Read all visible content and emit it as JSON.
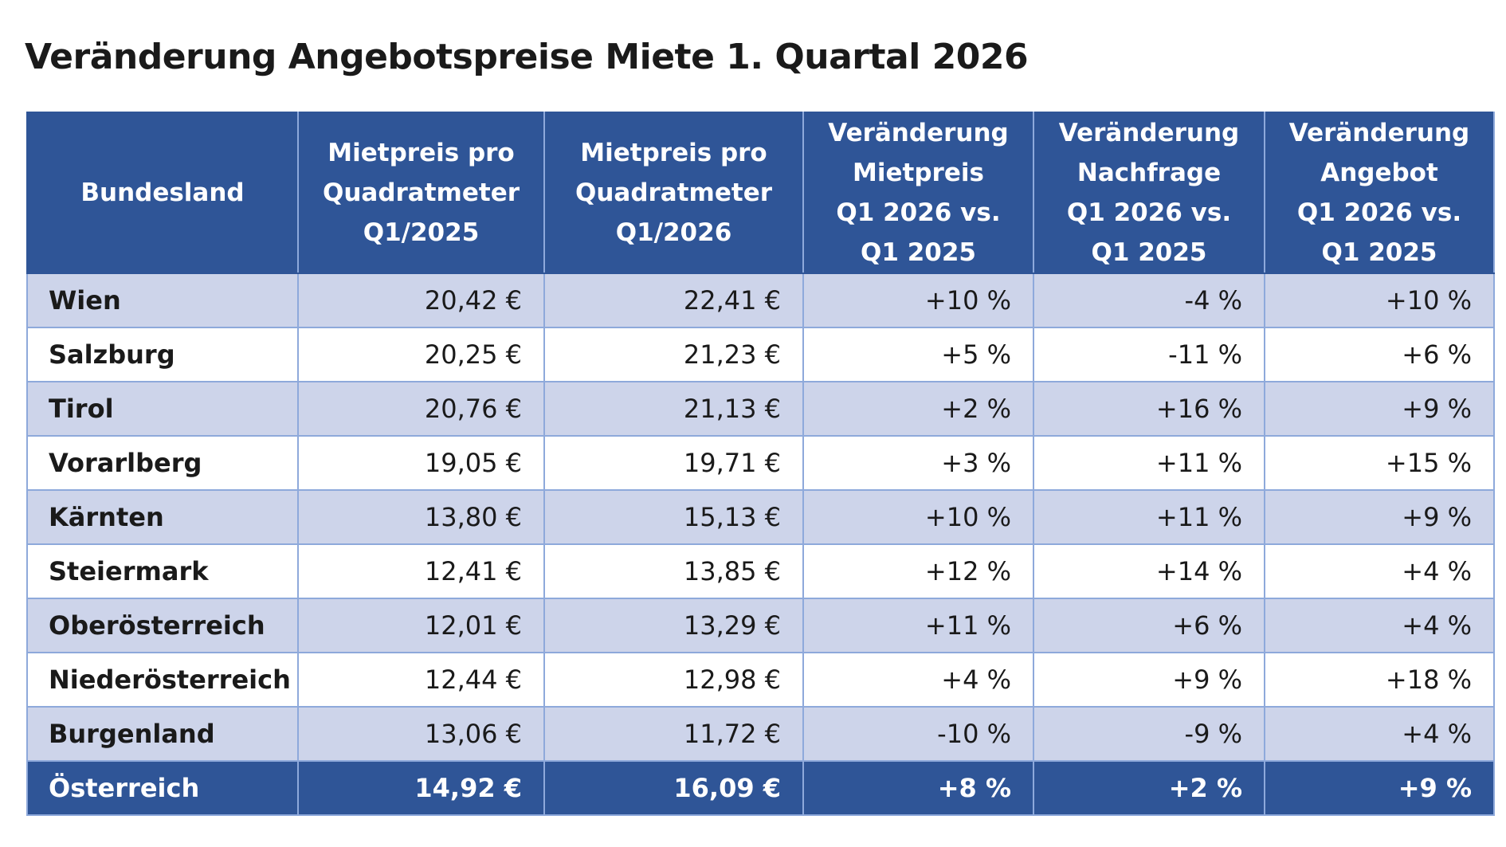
{
  "title": "Veränderung Angebotspreise Miete 1. Quartal 2026",
  "table": {
    "header": [
      "Bundesland",
      "Mietpreis pro\nQuadratmeter\nQ1/2025",
      "Mietpreis pro\nQuadratmeter\nQ1/2026",
      "Veränderung\nMietpreis\nQ1 2026 vs.\nQ1 2025",
      "Veränderung\nNachfrage\nQ1 2026 vs.\nQ1 2025",
      "Veränderung\nAngebot\nQ1 2026 vs.\nQ1 2025"
    ],
    "rows": [
      [
        "Wien",
        "20,42 €",
        "22,41 €",
        "+10 %",
        "-4 %",
        "+10 %"
      ],
      [
        "Salzburg",
        "20,25 €",
        "21,23 €",
        "+5 %",
        "-11 %",
        "+6 %"
      ],
      [
        "Tirol",
        "20,76 €",
        "21,13 €",
        "+2 %",
        "+16 %",
        "+9 %"
      ],
      [
        "Vorarlberg",
        "19,05 €",
        "19,71 €",
        "+3 %",
        "+11 %",
        "+15 %"
      ],
      [
        "Kärnten",
        "13,80 €",
        "15,13 €",
        "+10 %",
        "+11 %",
        "+9 %"
      ],
      [
        "Steiermark",
        "12,41 €",
        "13,85 €",
        "+12 %",
        "+14 %",
        "+4 %"
      ],
      [
        "Oberösterreich",
        "12,01 €",
        "13,29 €",
        "+11 %",
        "+6 %",
        "+4 %"
      ],
      [
        "Niederösterreich",
        "12,44 €",
        "12,98 €",
        "+4 %",
        "+9 %",
        "+18 %"
      ],
      [
        "Burgenland",
        "13,06 €",
        "11,72 €",
        "-10 %",
        "-9 %",
        "+4 %"
      ]
    ],
    "total": [
      "Österreich",
      "14,92 €",
      "16,09 €",
      "+8 %",
      "+2 %",
      "+9 %"
    ]
  }
}
